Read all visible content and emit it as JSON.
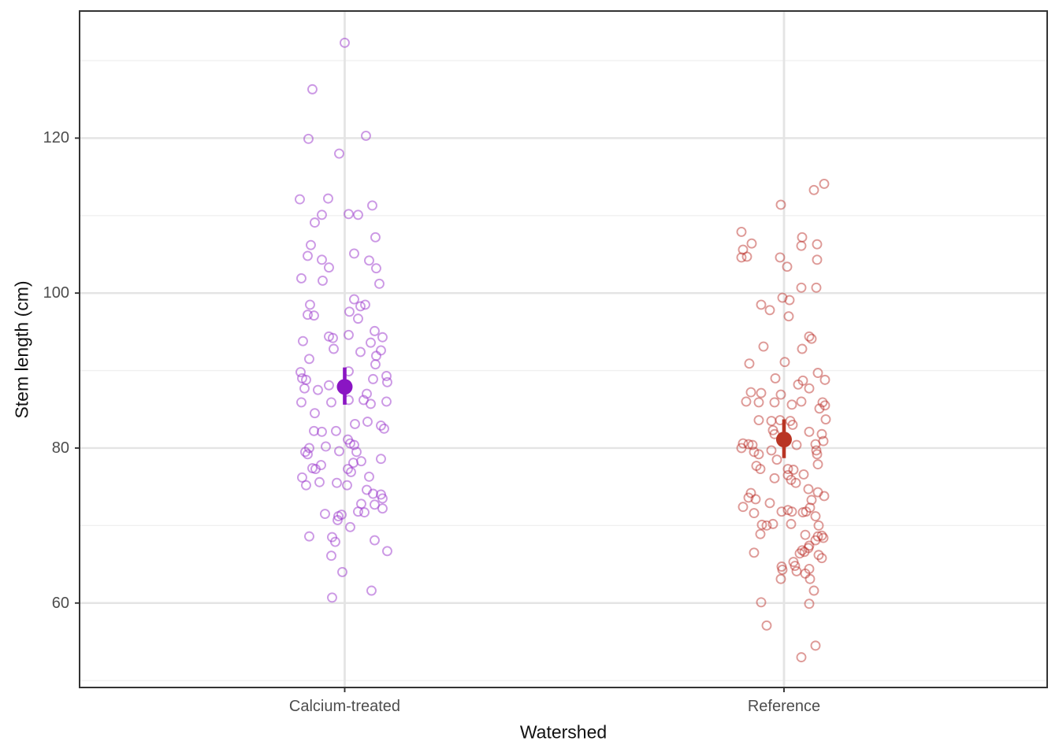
{
  "chart": {
    "chart_data": {
      "type": "scatter",
      "subtype": "jitter-strip-with-mean-ci",
      "title": "",
      "xlabel": "Watershed",
      "ylabel": "Stem length (cm)",
      "x_categories": [
        "Calcium-treated",
        "Reference"
      ],
      "y_ticks": [
        60,
        80,
        100,
        120
      ],
      "y_minor_gridlines": [
        50,
        70,
        90,
        110,
        130
      ],
      "ylim": [
        49.1,
        136.4
      ],
      "grid": "major-and-minor, light gray on white, panel border",
      "legend": "none",
      "series": [
        {
          "name": "Calcium-treated",
          "mean": 87.9,
          "ci_low": 85.6,
          "ci_high": 90.4,
          "point_stroke": "rgba(153,51,204,0.5)",
          "mean_color": "#8A15C3",
          "points_jitter_value": [
            [
              0,
              132.3
            ],
            [
              -41,
              126.3
            ],
            [
              -46,
              119.9
            ],
            [
              27,
              120.3
            ],
            [
              -7,
              118.0
            ],
            [
              -57,
              112.1
            ],
            [
              -21,
              112.2
            ],
            [
              35,
              111.3
            ],
            [
              -29,
              110.1
            ],
            [
              5,
              110.2
            ],
            [
              17,
              110.1
            ],
            [
              -38,
              109.1
            ],
            [
              39,
              107.2
            ],
            [
              -43,
              106.2
            ],
            [
              -47,
              104.8
            ],
            [
              12,
              105.1
            ],
            [
              -29,
              104.3
            ],
            [
              31,
              104.2
            ],
            [
              -20,
              103.3
            ],
            [
              40,
              103.2
            ],
            [
              -55,
              101.9
            ],
            [
              -28,
              101.6
            ],
            [
              44,
              101.2
            ],
            [
              12,
              99.2
            ],
            [
              -44,
              98.5
            ],
            [
              6,
              97.6
            ],
            [
              20,
              98.3
            ],
            [
              26,
              98.5
            ],
            [
              17,
              96.7
            ],
            [
              -47,
              97.2
            ],
            [
              -39,
              97.1
            ],
            [
              -20,
              94.4
            ],
            [
              -15,
              94.2
            ],
            [
              5,
              94.6
            ],
            [
              -53,
              93.8
            ],
            [
              38,
              95.1
            ],
            [
              48,
              94.3
            ],
            [
              33,
              93.6
            ],
            [
              -14,
              92.8
            ],
            [
              20,
              92.4
            ],
            [
              46,
              92.6
            ],
            [
              40,
              91.9
            ],
            [
              -45,
              91.5
            ],
            [
              39,
              90.8
            ],
            [
              -56,
              89.8
            ],
            [
              -54,
              89.0
            ],
            [
              -49,
              88.8
            ],
            [
              36,
              88.9
            ],
            [
              53,
              89.3
            ],
            [
              54,
              88.5
            ],
            [
              -51,
              87.7
            ],
            [
              -34,
              87.5
            ],
            [
              -20,
              88.1
            ],
            [
              5,
              89.9
            ],
            [
              28,
              87.0
            ],
            [
              24,
              86.2
            ],
            [
              33,
              85.7
            ],
            [
              53,
              86.0
            ],
            [
              -55,
              85.9
            ],
            [
              -17,
              85.9
            ],
            [
              5,
              86.2
            ],
            [
              -38,
              84.5
            ],
            [
              13,
              83.1
            ],
            [
              29,
              83.4
            ],
            [
              46,
              82.9
            ],
            [
              50,
              82.5
            ],
            [
              -39,
              82.2
            ],
            [
              -29,
              82.1
            ],
            [
              -11,
              82.2
            ],
            [
              -24,
              80.2
            ],
            [
              4,
              81.1
            ],
            [
              7,
              80.6
            ],
            [
              12,
              80.4
            ],
            [
              -45,
              80.0
            ],
            [
              -50,
              79.5
            ],
            [
              -47,
              79.2
            ],
            [
              -7,
              79.6
            ],
            [
              15,
              79.5
            ],
            [
              21,
              78.3
            ],
            [
              46,
              78.6
            ],
            [
              11,
              78.1
            ],
            [
              -30,
              77.8
            ],
            [
              -41,
              77.4
            ],
            [
              -37,
              77.3
            ],
            [
              4,
              77.3
            ],
            [
              8,
              76.9
            ],
            [
              -54,
              76.2
            ],
            [
              -32,
              75.6
            ],
            [
              -49,
              75.2
            ],
            [
              -10,
              75.5
            ],
            [
              3,
              75.2
            ],
            [
              31,
              76.3
            ],
            [
              28,
              74.6
            ],
            [
              36,
              74.1
            ],
            [
              46,
              74.0
            ],
            [
              48,
              73.5
            ],
            [
              21,
              72.8
            ],
            [
              38,
              72.7
            ],
            [
              -25,
              71.5
            ],
            [
              17,
              71.8
            ],
            [
              25,
              71.7
            ],
            [
              48,
              72.2
            ],
            [
              -8,
              71.2
            ],
            [
              -4,
              71.4
            ],
            [
              -9,
              70.7
            ],
            [
              7,
              69.8
            ],
            [
              -45,
              68.6
            ],
            [
              -16,
              68.5
            ],
            [
              -12,
              67.9
            ],
            [
              38,
              68.1
            ],
            [
              54,
              66.7
            ],
            [
              -17,
              66.1
            ],
            [
              -3,
              64.0
            ],
            [
              34,
              61.6
            ],
            [
              -16,
              60.7
            ]
          ]
        },
        {
          "name": "Reference",
          "mean": 81.1,
          "ci_low": 78.7,
          "ci_high": 83.7,
          "point_stroke": "rgba(185,40,35,0.47)",
          "mean_color": "#B93524",
          "points_jitter_value": [
            [
              38,
              113.3
            ],
            [
              51,
              114.1
            ],
            [
              -4,
              111.4
            ],
            [
              -54,
              107.9
            ],
            [
              -41,
              106.4
            ],
            [
              -52,
              105.6
            ],
            [
              -54,
              104.6
            ],
            [
              -47,
              104.7
            ],
            [
              23,
              107.2
            ],
            [
              22,
              106.1
            ],
            [
              42,
              106.3
            ],
            [
              -5,
              104.6
            ],
            [
              42,
              104.3
            ],
            [
              4,
              103.4
            ],
            [
              22,
              100.7
            ],
            [
              41,
              100.7
            ],
            [
              -2,
              99.4
            ],
            [
              7,
              99.1
            ],
            [
              -29,
              98.5
            ],
            [
              -18,
              97.8
            ],
            [
              6,
              97.0
            ],
            [
              32,
              94.4
            ],
            [
              35,
              94.1
            ],
            [
              -26,
              93.1
            ],
            [
              23,
              92.8
            ],
            [
              -44,
              90.9
            ],
            [
              1,
              91.1
            ],
            [
              43,
              89.7
            ],
            [
              52,
              88.8
            ],
            [
              -11,
              89.0
            ],
            [
              18,
              88.2
            ],
            [
              24,
              88.7
            ],
            [
              32,
              87.7
            ],
            [
              -42,
              87.2
            ],
            [
              -29,
              87.1
            ],
            [
              -48,
              86.0
            ],
            [
              -32,
              85.9
            ],
            [
              -4,
              86.9
            ],
            [
              -12,
              85.9
            ],
            [
              10,
              85.6
            ],
            [
              22,
              86.0
            ],
            [
              49,
              85.9
            ],
            [
              52,
              85.5
            ],
            [
              45,
              85.1
            ],
            [
              -32,
              83.6
            ],
            [
              -16,
              83.5
            ],
            [
              -5,
              83.6
            ],
            [
              8,
              83.5
            ],
            [
              11,
              83.0
            ],
            [
              53,
              83.7
            ],
            [
              -14,
              82.3
            ],
            [
              -12,
              81.8
            ],
            [
              32,
              82.1
            ],
            [
              48,
              81.8
            ],
            [
              -52,
              80.6
            ],
            [
              -45,
              80.5
            ],
            [
              -40,
              80.4
            ],
            [
              16,
              80.4
            ],
            [
              40,
              80.5
            ],
            [
              50,
              80.9
            ],
            [
              -54,
              80.0
            ],
            [
              -38,
              79.5
            ],
            [
              -32,
              79.2
            ],
            [
              -16,
              79.7
            ],
            [
              41,
              79.7
            ],
            [
              42,
              79.2
            ],
            [
              -9,
              78.5
            ],
            [
              -35,
              77.7
            ],
            [
              -30,
              77.3
            ],
            [
              43,
              77.9
            ],
            [
              5,
              77.3
            ],
            [
              12,
              77.2
            ],
            [
              5,
              76.5
            ],
            [
              25,
              76.6
            ],
            [
              -12,
              76.1
            ],
            [
              9,
              75.9
            ],
            [
              15,
              75.5
            ],
            [
              -42,
              74.2
            ],
            [
              -45,
              73.6
            ],
            [
              -36,
              73.4
            ],
            [
              31,
              74.7
            ],
            [
              43,
              74.3
            ],
            [
              51,
              73.8
            ],
            [
              35,
              73.3
            ],
            [
              -52,
              72.4
            ],
            [
              -18,
              72.9
            ],
            [
              -38,
              71.6
            ],
            [
              -3,
              71.8
            ],
            [
              5,
              72.0
            ],
            [
              10,
              71.8
            ],
            [
              24,
              71.7
            ],
            [
              28,
              71.8
            ],
            [
              33,
              72.3
            ],
            [
              40,
              71.2
            ],
            [
              -28,
              70.1
            ],
            [
              -22,
              70.0
            ],
            [
              -14,
              70.2
            ],
            [
              9,
              70.2
            ],
            [
              44,
              70.0
            ],
            [
              -30,
              68.9
            ],
            [
              27,
              68.8
            ],
            [
              43,
              68.6
            ],
            [
              48,
              68.7
            ],
            [
              50,
              68.4
            ],
            [
              32,
              67.4
            ],
            [
              40,
              68.1
            ],
            [
              -38,
              66.5
            ],
            [
              23,
              66.8
            ],
            [
              26,
              66.6
            ],
            [
              20,
              66.4
            ],
            [
              31,
              67.1
            ],
            [
              44,
              66.2
            ],
            [
              48,
              65.8
            ],
            [
              12,
              65.3
            ],
            [
              14,
              64.8
            ],
            [
              -3,
              64.7
            ],
            [
              -2,
              64.3
            ],
            [
              16,
              64.1
            ],
            [
              27,
              63.8
            ],
            [
              32,
              64.4
            ],
            [
              -4,
              63.1
            ],
            [
              33,
              63.1
            ],
            [
              38,
              61.6
            ],
            [
              -29,
              60.1
            ],
            [
              32,
              59.9
            ],
            [
              -22,
              57.1
            ],
            [
              40,
              54.5
            ],
            [
              22,
              53.0
            ]
          ]
        }
      ]
    },
    "y_axis": {
      "label": "Stem length (cm)"
    },
    "x_axis": {
      "label": "Watershed"
    },
    "style": {
      "panel_border_color": "#333333",
      "major_grid_color": "#e4e4e4",
      "minor_grid_color": "#f0f0f0",
      "tick_mark_color": "#333333",
      "tick_label_color": "#4d4d4d",
      "background": "#ffffff"
    }
  }
}
